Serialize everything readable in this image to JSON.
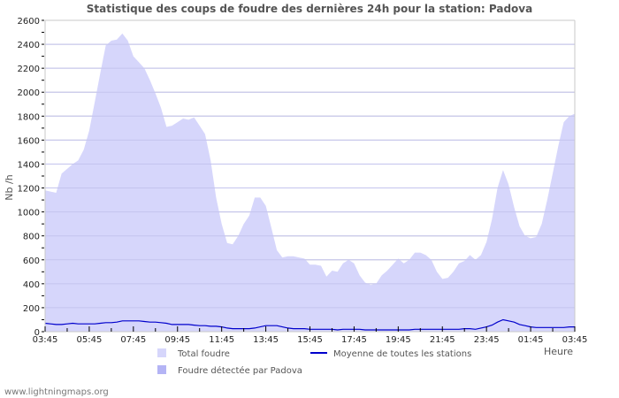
{
  "title": "Statistique des coups de foudre des dernières 24h pour la station: Padova",
  "credit": "www.lightningmaps.org",
  "chart_data": {
    "type": "area",
    "title": "Statistique des coups de foudre des dernières 24h pour la station: Padova",
    "xlabel": "Heure",
    "ylabel": "Nb /h",
    "ylim": [
      0,
      2600
    ],
    "yticks": [
      0,
      200,
      400,
      600,
      800,
      1000,
      1200,
      1400,
      1600,
      1800,
      2000,
      2200,
      2400,
      2600
    ],
    "xticks": [
      "03:45",
      "05:45",
      "07:45",
      "09:45",
      "11:45",
      "13:45",
      "15:45",
      "17:45",
      "19:45",
      "21:45",
      "23:45",
      "01:45",
      "03:45"
    ],
    "grid": true,
    "legend_position": "bottom",
    "x_step_minutes": 15,
    "series": [
      {
        "name": "Total foudre",
        "type": "area",
        "color": "#d6d6fb",
        "values": [
          1180,
          1170,
          1160,
          1320,
          1360,
          1400,
          1430,
          1520,
          1680,
          1920,
          2160,
          2390,
          2430,
          2440,
          2490,
          2430,
          2300,
          2250,
          2200,
          2100,
          1990,
          1870,
          1710,
          1720,
          1750,
          1780,
          1770,
          1790,
          1720,
          1650,
          1430,
          1120,
          900,
          740,
          730,
          800,
          900,
          970,
          1120,
          1120,
          1050,
          870,
          680,
          620,
          630,
          630,
          620,
          610,
          560,
          560,
          550,
          460,
          510,
          500,
          570,
          600,
          570,
          470,
          410,
          390,
          400,
          470,
          510,
          560,
          610,
          570,
          600,
          660,
          660,
          640,
          600,
          500,
          440,
          450,
          500,
          570,
          590,
          640,
          600,
          640,
          750,
          940,
          1200,
          1350,
          1230,
          1040,
          880,
          800,
          780,
          790,
          900,
          1100,
          1320,
          1550,
          1750,
          1800,
          1820
        ]
      },
      {
        "name": "Foudre détectée par Padova",
        "type": "area",
        "color": "#b4b4f5",
        "values": []
      },
      {
        "name": "Moyenne de toutes les stations",
        "type": "line",
        "color": "#0000cc",
        "values": [
          70,
          65,
          60,
          60,
          65,
          70,
          65,
          65,
          65,
          65,
          70,
          75,
          75,
          80,
          90,
          90,
          90,
          90,
          85,
          80,
          80,
          75,
          70,
          60,
          60,
          60,
          60,
          55,
          50,
          50,
          45,
          45,
          40,
          30,
          25,
          25,
          25,
          25,
          30,
          40,
          50,
          50,
          50,
          40,
          30,
          25,
          25,
          25,
          20,
          20,
          20,
          20,
          20,
          15,
          20,
          20,
          20,
          20,
          15,
          15,
          15,
          15,
          15,
          15,
          15,
          15,
          15,
          20,
          20,
          20,
          20,
          20,
          20,
          20,
          20,
          20,
          25,
          25,
          20,
          30,
          40,
          55,
          80,
          100,
          90,
          80,
          60,
          50,
          40,
          35,
          35,
          35,
          35,
          35,
          35,
          40,
          40
        ]
      }
    ]
  },
  "axis": {
    "y_label": "Nb /h",
    "x_label": "Heure",
    "y_ticks": [
      "0",
      "200",
      "400",
      "600",
      "800",
      "1000",
      "1200",
      "1400",
      "1600",
      "1800",
      "2000",
      "2200",
      "2400",
      "2600"
    ],
    "x_ticks": [
      "03:45",
      "05:45",
      "07:45",
      "09:45",
      "11:45",
      "13:45",
      "15:45",
      "17:45",
      "19:45",
      "21:45",
      "23:45",
      "01:45",
      "03:45"
    ]
  },
  "legend": [
    {
      "label": "Total foudre",
      "color": "#d6d6fb",
      "kind": "box"
    },
    {
      "label": "Moyenne de toutes les stations",
      "color": "#0000cc",
      "kind": "line"
    },
    {
      "label": "Foudre détectée par Padova",
      "color": "#b4b4f5",
      "kind": "box"
    }
  ]
}
